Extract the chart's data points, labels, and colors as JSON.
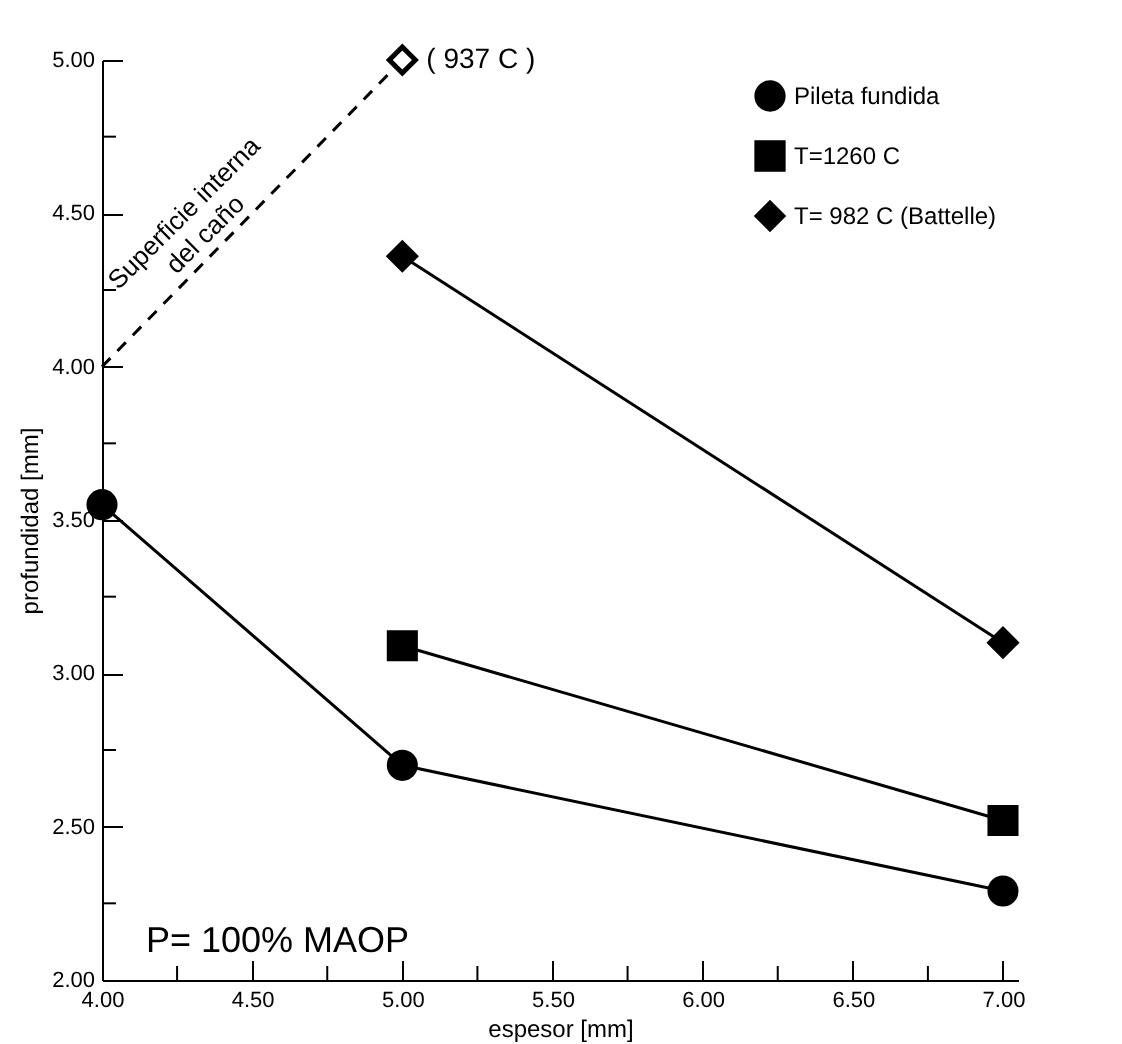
{
  "chart_data": {
    "type": "line",
    "xlabel": "espesor [mm]",
    "ylabel": "profundidad [mm]",
    "xlim": [
      4,
      7.05
    ],
    "ylim": [
      2,
      5
    ],
    "xticks": [
      {
        "value": 4,
        "label": "4.00"
      },
      {
        "value": 4.25,
        "label": null
      },
      {
        "value": 4.5,
        "label": "4.50"
      },
      {
        "value": 4.75,
        "label": null
      },
      {
        "value": 5,
        "label": "5.00"
      },
      {
        "value": 5.25,
        "label": null
      },
      {
        "value": 5.5,
        "label": "5.50"
      },
      {
        "value": 5.75,
        "label": null
      },
      {
        "value": 6,
        "label": "6.00"
      },
      {
        "value": 6.25,
        "label": null
      },
      {
        "value": 6.5,
        "label": "6.50"
      },
      {
        "value": 6.75,
        "label": null
      },
      {
        "value": 7,
        "label": "7.00"
      }
    ],
    "yticks": [
      {
        "value": 2,
        "label": "2.00"
      },
      {
        "value": 2.25,
        "label": null
      },
      {
        "value": 2.5,
        "label": "2.50"
      },
      {
        "value": 2.75,
        "label": null
      },
      {
        "value": 3,
        "label": "3.00"
      },
      {
        "value": 3.25,
        "label": null
      },
      {
        "value": 3.5,
        "label": "3.50"
      },
      {
        "value": 3.75,
        "label": null
      },
      {
        "value": 4,
        "label": "4.00"
      },
      {
        "value": 4.25,
        "label": null
      },
      {
        "value": 4.5,
        "label": "4.50"
      },
      {
        "value": 4.75,
        "label": null
      },
      {
        "value": 5,
        "label": "5.00"
      }
    ],
    "grid": false,
    "legend": "top right",
    "series": [
      {
        "name": "Pileta fundida",
        "color": "#000000",
        "marker": "circle",
        "x": [
          4,
          5,
          7
        ],
        "values": [
          3.55,
          2.7,
          2.29
        ]
      },
      {
        "name": "T=1260 C",
        "color": "#000000",
        "marker": "square",
        "x": [
          5,
          7
        ],
        "values": [
          3.09,
          2.52
        ]
      },
      {
        "name": "T= 982 C (Battelle)",
        "color": "#000000",
        "marker": "diamond",
        "x": [
          5,
          7
        ],
        "values": [
          4.36,
          3.1
        ]
      },
      {
        "type": "line",
        "color": "#000000",
        "marker": "none",
        "line_style": "dashed",
        "x": [
          4,
          5
        ],
        "values": [
          4,
          5
        ]
      },
      {
        "type": "scatter",
        "color": "#000000",
        "marker": "diamond",
        "x": [
          5
        ],
        "values": [
          5
        ]
      }
    ],
    "annotations": [
      {
        "text": "( 937 C )",
        "x": 5,
        "y": 5
      },
      {
        "text": "Superficie interna\ndel caño",
        "x": 4.5,
        "y": 4.5
      },
      "P= 100% MAOP"
    ]
  }
}
